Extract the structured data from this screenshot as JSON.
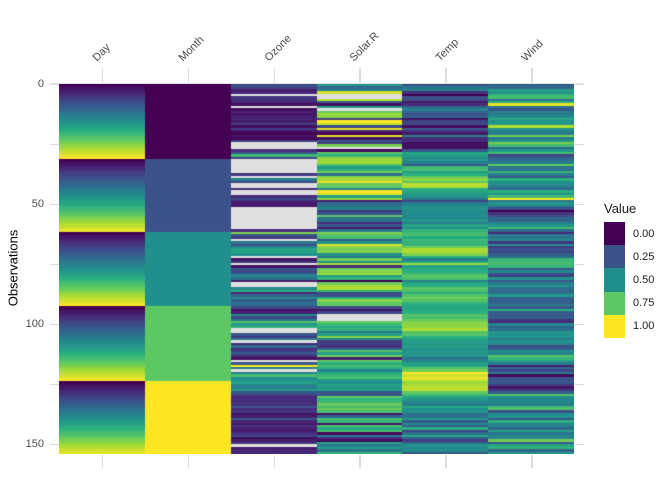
{
  "chart_data": {
    "type": "heatmap",
    "title": "",
    "xlabel": "",
    "ylabel": "Observations",
    "columns": [
      "Day",
      "Month",
      "Ozone",
      "Solar.R",
      "Temp",
      "Wind"
    ],
    "n_observations": 153,
    "y_ticks_labeled": [
      0,
      50,
      100,
      150
    ],
    "y_tick_labels": [
      "0",
      "50",
      "100",
      "150"
    ],
    "y_ticks_minor": [
      25,
      75,
      125
    ],
    "normalization": "per-column min-max scaled to 0-1",
    "grid": "top line only, light gray",
    "na_color": "#dfdfdf",
    "colormap_name": "viridis",
    "colormap_stops": [
      "#440154",
      "#472D7B",
      "#3B528B",
      "#2C728E",
      "#21908C",
      "#27AD81",
      "#5DC863",
      "#AADC32",
      "#FDE725"
    ],
    "legend": {
      "title": "Value",
      "position": "right",
      "labels": [
        "0.00",
        "0.25",
        "0.50",
        "0.75",
        "1.00"
      ],
      "values": [
        0,
        0.25,
        0.5,
        0.75,
        1
      ],
      "colors": [
        "#440154",
        "#3B528B",
        "#21908C",
        "#5DC863",
        "#FDE725"
      ]
    },
    "data": {
      "Day": [
        1,
        2,
        3,
        4,
        5,
        6,
        7,
        8,
        9,
        10,
        11,
        12,
        13,
        14,
        15,
        16,
        17,
        18,
        19,
        20,
        21,
        22,
        23,
        24,
        25,
        26,
        27,
        28,
        29,
        30,
        31,
        1,
        2,
        3,
        4,
        5,
        6,
        7,
        8,
        9,
        10,
        11,
        12,
        13,
        14,
        15,
        16,
        17,
        18,
        19,
        20,
        21,
        22,
        23,
        24,
        25,
        26,
        27,
        28,
        29,
        30,
        1,
        2,
        3,
        4,
        5,
        6,
        7,
        8,
        9,
        10,
        11,
        12,
        13,
        14,
        15,
        16,
        17,
        18,
        19,
        20,
        21,
        22,
        23,
        24,
        25,
        26,
        27,
        28,
        29,
        30,
        31,
        1,
        2,
        3,
        4,
        5,
        6,
        7,
        8,
        9,
        10,
        11,
        12,
        13,
        14,
        15,
        16,
        17,
        18,
        19,
        20,
        21,
        22,
        23,
        24,
        25,
        26,
        27,
        28,
        29,
        30,
        31,
        1,
        2,
        3,
        4,
        5,
        6,
        7,
        8,
        9,
        10,
        11,
        12,
        13,
        14,
        15,
        16,
        17,
        18,
        19,
        20,
        21,
        22,
        23,
        24,
        25,
        26,
        27,
        28,
        29,
        30
      ],
      "Month": [
        5,
        5,
        5,
        5,
        5,
        5,
        5,
        5,
        5,
        5,
        5,
        5,
        5,
        5,
        5,
        5,
        5,
        5,
        5,
        5,
        5,
        5,
        5,
        5,
        5,
        5,
        5,
        5,
        5,
        5,
        5,
        6,
        6,
        6,
        6,
        6,
        6,
        6,
        6,
        6,
        6,
        6,
        6,
        6,
        6,
        6,
        6,
        6,
        6,
        6,
        6,
        6,
        6,
        6,
        6,
        6,
        6,
        6,
        6,
        6,
        6,
        7,
        7,
        7,
        7,
        7,
        7,
        7,
        7,
        7,
        7,
        7,
        7,
        7,
        7,
        7,
        7,
        7,
        7,
        7,
        7,
        7,
        7,
        7,
        7,
        7,
        7,
        7,
        7,
        7,
        7,
        7,
        8,
        8,
        8,
        8,
        8,
        8,
        8,
        8,
        8,
        8,
        8,
        8,
        8,
        8,
        8,
        8,
        8,
        8,
        8,
        8,
        8,
        8,
        8,
        8,
        8,
        8,
        8,
        8,
        8,
        8,
        8,
        9,
        9,
        9,
        9,
        9,
        9,
        9,
        9,
        9,
        9,
        9,
        9,
        9,
        9,
        9,
        9,
        9,
        9,
        9,
        9,
        9,
        9,
        9,
        9,
        9,
        9,
        9,
        9,
        9,
        9
      ],
      "Ozone": [
        41,
        36,
        12,
        18,
        null,
        28,
        23,
        19,
        8,
        null,
        7,
        16,
        11,
        14,
        18,
        14,
        34,
        6,
        30,
        11,
        1,
        11,
        4,
        32,
        null,
        null,
        null,
        23,
        45,
        115,
        37,
        null,
        null,
        null,
        null,
        null,
        null,
        29,
        null,
        71,
        39,
        null,
        null,
        23,
        null,
        null,
        21,
        37,
        20,
        12,
        13,
        null,
        null,
        null,
        null,
        null,
        null,
        null,
        null,
        null,
        23,
        135,
        49,
        32,
        null,
        64,
        40,
        77,
        97,
        97,
        85,
        null,
        10,
        27,
        null,
        7,
        48,
        35,
        61,
        79,
        63,
        16,
        null,
        null,
        80,
        108,
        20,
        52,
        82,
        50,
        64,
        59,
        39,
        9,
        16,
        78,
        35,
        66,
        122,
        89,
        110,
        null,
        null,
        44,
        28,
        65,
        null,
        22,
        59,
        23,
        31,
        44,
        21,
        9,
        null,
        45,
        168,
        73,
        null,
        76,
        118,
        84,
        85,
        96,
        78,
        73,
        91,
        47,
        32,
        20,
        23,
        21,
        24,
        44,
        21,
        28,
        9,
        13,
        46,
        18,
        13,
        24,
        16,
        13,
        23,
        36,
        7,
        14,
        30,
        null,
        14,
        18,
        20
      ],
      "Solar.R": [
        190,
        118,
        149,
        313,
        null,
        null,
        299,
        99,
        19,
        194,
        null,
        256,
        290,
        274,
        65,
        334,
        307,
        78,
        322,
        44,
        8,
        320,
        25,
        92,
        66,
        266,
        null,
        13,
        252,
        223,
        279,
        286,
        287,
        242,
        186,
        220,
        264,
        127,
        273,
        291,
        323,
        259,
        250,
        148,
        332,
        322,
        191,
        284,
        37,
        120,
        137,
        150,
        59,
        91,
        250,
        135,
        127,
        47,
        98,
        31,
        138,
        269,
        248,
        236,
        101,
        175,
        314,
        276,
        267,
        272,
        175,
        139,
        264,
        175,
        291,
        48,
        260,
        274,
        285,
        187,
        220,
        7,
        258,
        295,
        294,
        223,
        81,
        82,
        213,
        275,
        253,
        254,
        83,
        24,
        77,
        null,
        null,
        null,
        255,
        229,
        207,
        222,
        137,
        192,
        273,
        157,
        64,
        71,
        51,
        115,
        244,
        190,
        259,
        36,
        255,
        212,
        238,
        215,
        153,
        203,
        225,
        237,
        188,
        167,
        197,
        183,
        189,
        95,
        92,
        252,
        220,
        230,
        259,
        236,
        259,
        238,
        24,
        112,
        237,
        224,
        27,
        238,
        201,
        238,
        14,
        139,
        49,
        20,
        193,
        145,
        191,
        131,
        223
      ],
      "Temp": [
        67,
        72,
        74,
        62,
        56,
        66,
        65,
        59,
        61,
        69,
        74,
        69,
        66,
        68,
        58,
        64,
        66,
        57,
        68,
        62,
        59,
        73,
        61,
        61,
        57,
        58,
        57,
        67,
        81,
        79,
        76,
        78,
        74,
        67,
        84,
        85,
        79,
        82,
        87,
        90,
        87,
        93,
        92,
        82,
        80,
        79,
        77,
        72,
        65,
        73,
        76,
        77,
        76,
        76,
        76,
        75,
        78,
        73,
        80,
        77,
        83,
        84,
        85,
        81,
        84,
        83,
        83,
        88,
        92,
        92,
        89,
        82,
        73,
        81,
        91,
        80,
        81,
        82,
        84,
        87,
        85,
        74,
        81,
        82,
        86,
        85,
        82,
        86,
        88,
        86,
        83,
        81,
        81,
        81,
        82,
        86,
        85,
        87,
        89,
        90,
        90,
        92,
        86,
        86,
        82,
        80,
        79,
        77,
        79,
        76,
        78,
        78,
        77,
        72,
        75,
        79,
        81,
        86,
        88,
        97,
        94,
        96,
        94,
        91,
        92,
        93,
        93,
        87,
        84,
        80,
        78,
        75,
        73,
        81,
        76,
        77,
        71,
        71,
        78,
        67,
        76,
        68,
        82,
        64,
        71,
        81,
        69,
        63,
        70,
        77,
        75,
        76,
        68
      ],
      "Wind": [
        7.4,
        8.0,
        12.6,
        11.5,
        14.3,
        14.9,
        8.6,
        13.8,
        20.1,
        8.6,
        6.9,
        9.7,
        9.2,
        10.9,
        13.2,
        11.5,
        12.0,
        18.4,
        11.5,
        9.7,
        9.7,
        16.6,
        9.7,
        12.0,
        16.6,
        14.9,
        8.0,
        12.0,
        14.9,
        5.7,
        7.4,
        8.6,
        9.7,
        16.1,
        9.2,
        8.6,
        14.3,
        9.7,
        6.9,
        13.8,
        11.5,
        10.9,
        9.2,
        8.0,
        13.8,
        11.5,
        14.9,
        20.7,
        9.2,
        11.5,
        10.3,
        6.3,
        1.7,
        4.6,
        6.3,
        8.0,
        8.0,
        10.3,
        11.5,
        14.9,
        8.0,
        4.1,
        9.2,
        9.2,
        10.9,
        4.6,
        10.9,
        5.1,
        6.3,
        5.7,
        7.4,
        8.6,
        14.3,
        14.9,
        14.9,
        14.3,
        6.9,
        10.3,
        6.3,
        5.1,
        11.5,
        6.9,
        9.7,
        11.5,
        8.6,
        8.0,
        8.6,
        12.0,
        7.4,
        7.4,
        7.4,
        9.2,
        6.9,
        13.8,
        7.4,
        6.9,
        7.4,
        4.6,
        4.0,
        10.3,
        8.0,
        8.6,
        11.5,
        11.5,
        11.5,
        9.7,
        11.5,
        10.3,
        6.3,
        7.4,
        10.9,
        10.3,
        15.5,
        14.3,
        12.6,
        9.7,
        3.4,
        8.0,
        5.7,
        9.7,
        2.3,
        6.3,
        6.3,
        6.9,
        5.1,
        2.8,
        4.6,
        7.4,
        15.5,
        10.9,
        10.3,
        10.9,
        9.7,
        14.9,
        15.5,
        6.3,
        10.9,
        11.5,
        6.9,
        13.8,
        10.3,
        10.3,
        8.0,
        12.6,
        9.2,
        10.3,
        10.3,
        16.6,
        6.9,
        13.2,
        14.3,
        8.0,
        11.5
      ]
    }
  }
}
